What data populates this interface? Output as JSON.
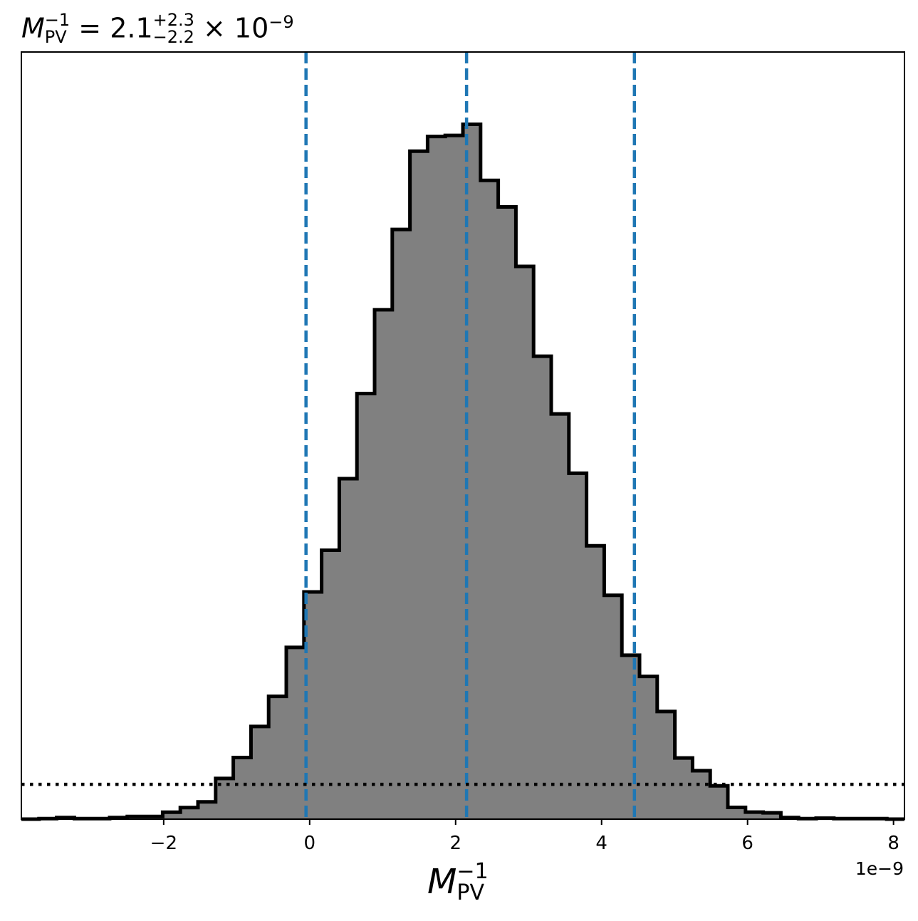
{
  "chart_data": {
    "type": "histogram",
    "title": {
      "symbol": "M",
      "sub": "PV",
      "sup": "−1",
      "equals": " = ",
      "value": "2.1",
      "plus_err": "+2.3",
      "minus_err": "−2.2",
      "scale": " × 10",
      "scale_exp": "−9"
    },
    "xlabel": {
      "symbol": "M",
      "sub": "PV",
      "sup": "−1"
    },
    "x_offset_text": "1e−9",
    "xlim": [
      -3.95,
      8.15
    ],
    "x_ticks": [
      {
        "value": -2,
        "label": "−2"
      },
      {
        "value": 0,
        "label": "0"
      },
      {
        "value": 2,
        "label": "2"
      },
      {
        "value": 4,
        "label": "4"
      },
      {
        "value": 6,
        "label": "6"
      },
      {
        "value": 8,
        "label": "8"
      }
    ],
    "yticks_visible": false,
    "ylim": [
      0,
      1.07
    ],
    "bins": {
      "start": -3.95,
      "width": 0.242,
      "heights": [
        0,
        0.0007,
        0.0022,
        0.0007,
        0.0007,
        0.0022,
        0.0037,
        0.0037,
        0.0097,
        0.0161,
        0.0241,
        0.0567,
        0.0859,
        0.1293,
        0.1713,
        0.2396,
        0.3169,
        0.375,
        0.4749,
        0.5936,
        0.7105,
        0.8225,
        0.9316,
        0.9521,
        0.9536,
        0.9691,
        0.8909,
        0.8539,
        0.7709,
        0.6457,
        0.5652,
        0.4825,
        0.3812,
        0.3122,
        0.2286,
        0.1991,
        0.1502,
        0.0853,
        0.0676,
        0.0465,
        0.0164,
        0.0098,
        0.0088,
        0.0022,
        0.0007,
        0.0014,
        0.0007,
        0.0007,
        0.0007,
        0
      ]
    },
    "quantile_lines": [
      -0.05,
      2.15,
      4.45
    ],
    "threshold_y": 0.0485,
    "colors": {
      "fill": "#808080",
      "edge": "#000000",
      "quantile": "#1f77b4",
      "threshold": "#000000",
      "axes": "#000000"
    }
  }
}
